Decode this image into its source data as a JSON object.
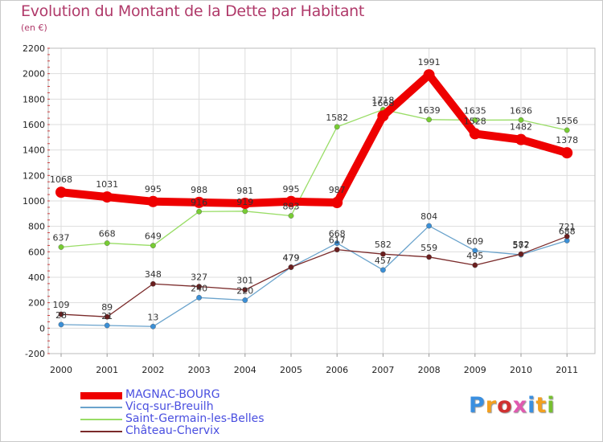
{
  "title": "Evolution du Montant de la Dette par Habitant",
  "unit": "(en €)",
  "logo_text": "Proxiti",
  "colors": {
    "background": "#ffffff",
    "grid": "#dddddd",
    "axis_text": "#222222",
    "title": "#b03a6a",
    "legend_text": "#4a4fe0",
    "tick_mark": "#d04040"
  },
  "chart_data": {
    "type": "line",
    "title": "Evolution du Montant de la Dette par Habitant",
    "subtitle": "(en €)",
    "xlabel": "",
    "ylabel": "",
    "x": [
      "2000",
      "2001",
      "2002",
      "2003",
      "2004",
      "2005",
      "2006",
      "2007",
      "2008",
      "2009",
      "2010",
      "2011"
    ],
    "ylim": [
      -200,
      2200
    ],
    "yticks": [
      -200,
      0,
      200,
      400,
      600,
      800,
      1000,
      1200,
      1400,
      1600,
      1800,
      2000,
      2200
    ],
    "grid": true,
    "legend_position": "bottom-left",
    "series": [
      {
        "name": "Vicq-sur-Breuilh",
        "color": "#6aa3cc",
        "marker": "#3b8fd6",
        "values": [
          28,
          21,
          13,
          240,
          220,
          479,
          668,
          457,
          804,
          609,
          577,
          688
        ],
        "labels": [
          "28",
          "21",
          "13",
          "240",
          "220",
          "479",
          "668",
          "457",
          "804",
          "609",
          "577",
          "688"
        ]
      },
      {
        "name": "Saint-Germain-les-Belles",
        "color": "#99dd66",
        "marker": "#77cc33",
        "values": [
          637,
          668,
          649,
          916,
          919,
          883,
          1582,
          1718,
          1639,
          1635,
          1636,
          1556
        ],
        "labels": [
          "637",
          "668",
          "649",
          "916",
          "919",
          "883",
          "1582",
          "1718",
          "1639",
          "1635",
          "1636",
          "1556"
        ]
      },
      {
        "name": "Château-Chervix",
        "color": "#7a2a2a",
        "marker": "#6a1e1e",
        "values": [
          109,
          89,
          348,
          327,
          301,
          479,
          617,
          582,
          559,
          495,
          582,
          721
        ],
        "labels": [
          "109",
          "89",
          "348",
          "327",
          "301",
          "479",
          "617",
          "582",
          "559",
          "495",
          "582",
          "721"
        ]
      },
      {
        "name": "MAGNAC-BOURG",
        "color": "#ee0000",
        "marker": "#ee0000",
        "values": [
          1068,
          1031,
          995,
          988,
          981,
          995,
          987,
          1668,
          1991,
          1528,
          1482,
          1378
        ],
        "labels": [
          "1068",
          "1031",
          "995",
          "988",
          "981",
          "995",
          "987",
          "1668",
          "1991",
          "1528",
          "1482",
          "1378"
        ]
      }
    ],
    "legend": [
      "MAGNAC-BOURG",
      "Vicq-sur-Breuilh",
      "Saint-Germain-les-Belles",
      "Château-Chervix"
    ]
  }
}
